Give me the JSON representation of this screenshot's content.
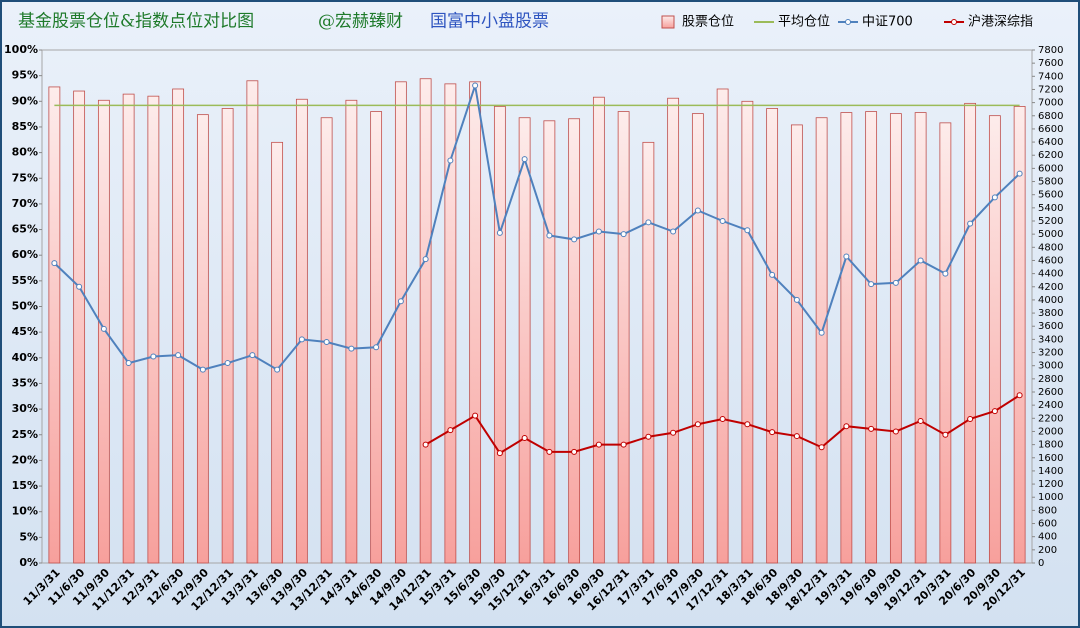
{
  "chart_data": {
    "type": "bar",
    "title": "基金股票仓位&指数点位对比图",
    "annotation": "@宏赫臻财",
    "subtitle": "国富中小盘股票",
    "categories": [
      "11/3/31",
      "11/6/30",
      "11/9/30",
      "11/12/31",
      "12/3/31",
      "12/6/30",
      "12/9/30",
      "12/12/31",
      "13/3/31",
      "13/6/30",
      "13/9/30",
      "13/12/31",
      "14/3/31",
      "14/6/30",
      "14/9/30",
      "14/12/31",
      "15/3/31",
      "15/6/30",
      "15/9/30",
      "15/12/31",
      "16/3/31",
      "16/6/30",
      "16/9/30",
      "16/12/31",
      "17/3/31",
      "17/6/30",
      "17/9/30",
      "17/12/31",
      "18/3/31",
      "18/6/30",
      "18/9/30",
      "18/12/31",
      "19/3/31",
      "19/6/30",
      "19/9/30",
      "19/12/31",
      "20/3/31",
      "20/6/30",
      "20/9/30",
      "20/12/31"
    ],
    "series": [
      {
        "name": "股票仓位",
        "type": "bar",
        "color": "#c0504d",
        "values": [
          92.8,
          92,
          90.2,
          91.4,
          91,
          92.4,
          87.4,
          88.6,
          94,
          82,
          90.4,
          86.8,
          90.2,
          88,
          93.8,
          94.4,
          93.4,
          93.8,
          89,
          86.8,
          86.2,
          86.6,
          90.8,
          88,
          82,
          90.6,
          87.6,
          92.4,
          90,
          88.6,
          85.4,
          86.8,
          87.8,
          88,
          87.6,
          87.8,
          85.8,
          89.6,
          87.2,
          89
        ]
      },
      {
        "name": "平均仓位",
        "type": "hline",
        "color": "#9bbb59",
        "value": 89.2
      },
      {
        "name": "中证700",
        "type": "line",
        "axis": "y2",
        "color": "#4f81bd",
        "values": [
          4560,
          4200,
          3560,
          3040,
          3140,
          3160,
          2940,
          3040,
          3160,
          2940,
          3400,
          3360,
          3260,
          3280,
          3980,
          4620,
          6120,
          7260,
          5020,
          6140,
          4980,
          4920,
          5040,
          5000,
          5180,
          5040,
          5360,
          5200,
          5060,
          4380,
          4000,
          3500,
          4660,
          4240,
          4260,
          4600,
          4400,
          5160,
          5560,
          5920
        ]
      },
      {
        "name": "沪港深综指",
        "type": "line",
        "axis": "y2",
        "color": "#c00000",
        "values": [
          null,
          null,
          null,
          null,
          null,
          null,
          null,
          null,
          null,
          null,
          null,
          null,
          null,
          null,
          null,
          1800,
          2020,
          2240,
          1670,
          1900,
          1690,
          1690,
          1800,
          1800,
          1920,
          1980,
          2110,
          2190,
          2110,
          1990,
          1930,
          1760,
          2080,
          2040,
          2000,
          2160,
          1950,
          2190,
          2310,
          2550
        ]
      }
    ],
    "ylim": [
      0,
      100
    ],
    "yticks": [
      {
        "value": 0,
        "label": "0%"
      },
      {
        "value": 5,
        "label": "5%"
      },
      {
        "value": 10,
        "label": "10%"
      },
      {
        "value": 15,
        "label": "15%"
      },
      {
        "value": 20,
        "label": "20%"
      },
      {
        "value": 25,
        "label": "25%"
      },
      {
        "value": 30,
        "label": "30%"
      },
      {
        "value": 35,
        "label": "35%"
      },
      {
        "value": 40,
        "label": "40%"
      },
      {
        "value": 45,
        "label": "45%"
      },
      {
        "value": 50,
        "label": "50%"
      },
      {
        "value": 55,
        "label": "55%"
      },
      {
        "value": 60,
        "label": "60%"
      },
      {
        "value": 65,
        "label": "65%"
      },
      {
        "value": 70,
        "label": "70%"
      },
      {
        "value": 75,
        "label": "75%"
      },
      {
        "value": 80,
        "label": "80%"
      },
      {
        "value": 85,
        "label": "85%"
      },
      {
        "value": 90,
        "label": "90%"
      },
      {
        "value": 95,
        "label": "95%"
      },
      {
        "value": 100,
        "label": "100%"
      }
    ],
    "y2lim": [
      0,
      7800
    ],
    "y2ticks": [
      0,
      200,
      400,
      600,
      800,
      1000,
      1200,
      1400,
      1600,
      1800,
      2000,
      2200,
      2400,
      2600,
      2800,
      3000,
      3200,
      3400,
      3600,
      3800,
      4000,
      4200,
      4400,
      4600,
      4800,
      5000,
      5200,
      5400,
      5600,
      5800,
      6000,
      6200,
      6400,
      6600,
      6800,
      7000,
      7200,
      7400,
      7600,
      7800
    ],
    "legend": "top-right"
  }
}
